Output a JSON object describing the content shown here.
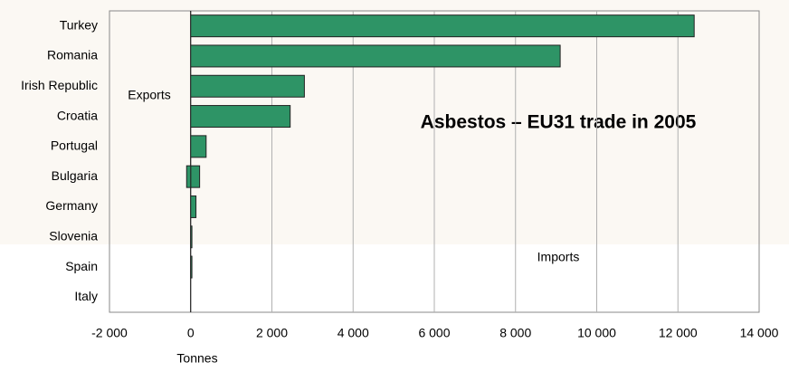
{
  "chart_data": {
    "type": "bar",
    "orientation": "horizontal",
    "title": "Asbestos – EU31 trade in 2005",
    "x_label": "Tonnes",
    "categories": [
      "Turkey",
      "Romania",
      "Irish Republic",
      "Croatia",
      "Portugal",
      "Bulgaria",
      "Germany",
      "Slovenia",
      "Spain",
      "Italy"
    ],
    "series": [
      {
        "name": "Imports",
        "color": "#2e9466",
        "values": [
          12400,
          9100,
          2800,
          2450,
          380,
          220,
          130,
          30,
          30,
          0
        ]
      },
      {
        "name": "Exports",
        "color": "#2e9466",
        "values": [
          0,
          0,
          0,
          0,
          0,
          -100,
          0,
          0,
          0,
          0
        ]
      }
    ],
    "xlim": [
      -2000,
      14000
    ],
    "xticks": [
      {
        "value": -2000,
        "label": "-2 000"
      },
      0,
      {
        "value": 2000,
        "label": "2 000"
      },
      {
        "value": 4000,
        "label": "4 000"
      },
      {
        "value": 6000,
        "label": "6 000"
      },
      {
        "value": 8000,
        "label": "8 000"
      },
      {
        "value": 10000,
        "label": "10 000"
      },
      {
        "value": 12000,
        "label": "12 000"
      },
      {
        "value": 14000,
        "label": "14 000"
      }
    ],
    "grid": true
  }
}
